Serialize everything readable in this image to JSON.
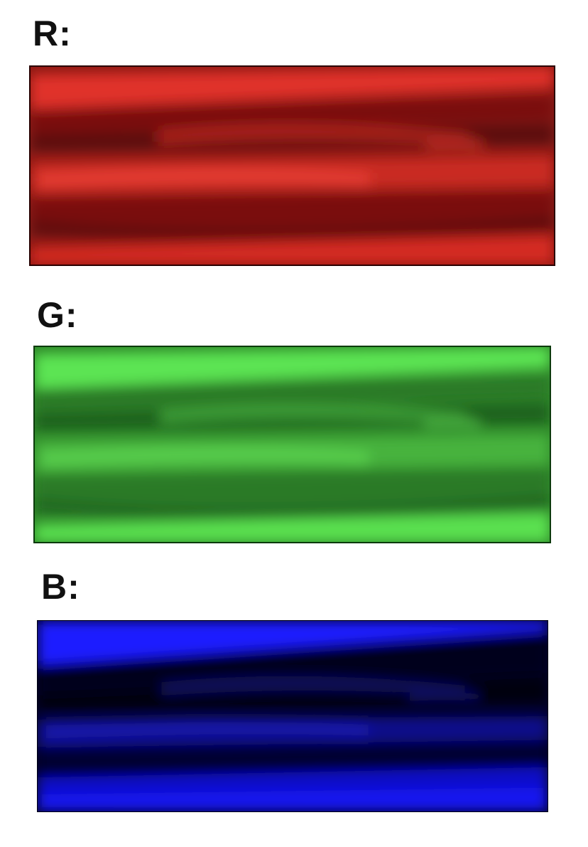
{
  "channels": [
    {
      "label": "R:",
      "color_light": "#e8322a",
      "color_dark": "#6e0c08",
      "channel": "red"
    },
    {
      "label": "G:",
      "color_light": "#5ee854",
      "color_dark": "#1f6a1c",
      "channel": "green"
    },
    {
      "label": "B:",
      "color_light": "#1a1aff",
      "color_dark": "#010014",
      "channel": "blue"
    }
  ]
}
